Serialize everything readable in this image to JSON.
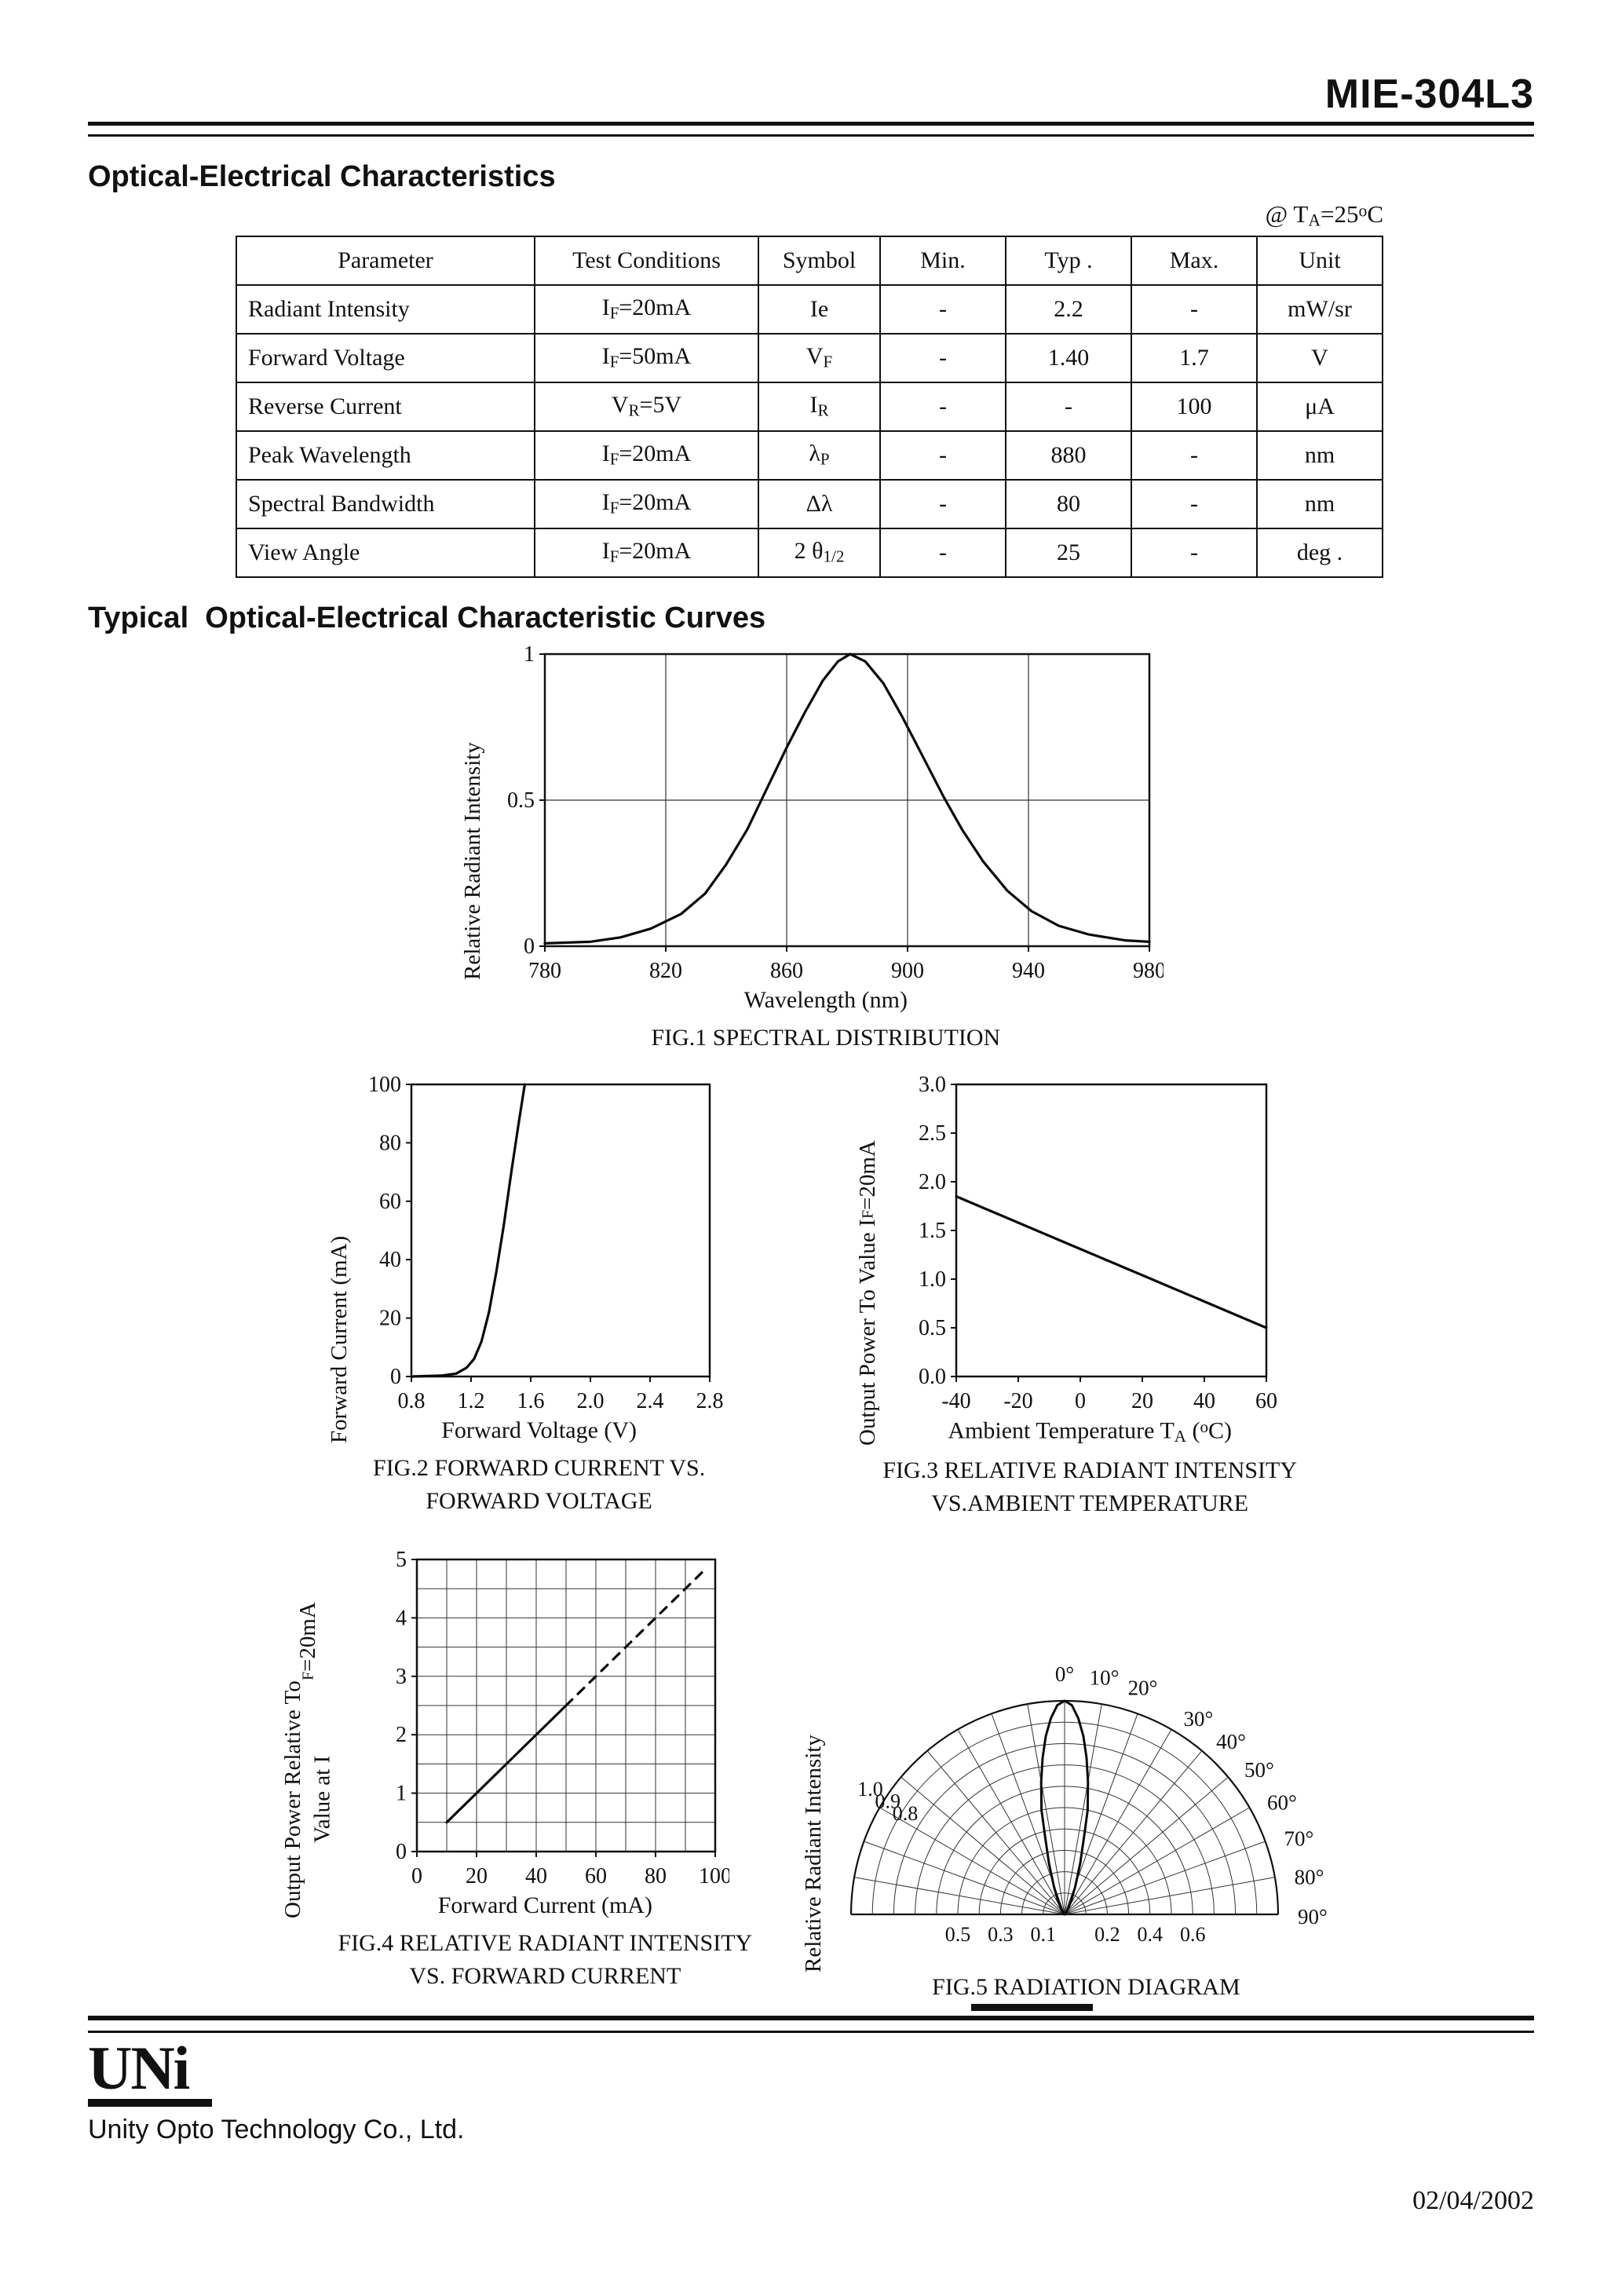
{
  "colors": {
    "ink": "#111111",
    "paper": "#ffffff"
  },
  "page": {
    "title": "MIE-304L3",
    "section1_heading": "Optical-Electrical Characteristics",
    "condition_note": "@ T~A~=25^o^C",
    "section2_heading": "Typical  Optical-Electrical Characteristic Curves"
  },
  "table": {
    "headers": [
      "Parameter",
      "Test Conditions",
      "Symbol",
      "Min.",
      "Typ .",
      "Max.",
      "Unit"
    ],
    "rows": [
      {
        "cells": [
          "Radiant Intensity",
          "I~F~=20mA",
          "Ie",
          "-",
          "2.2",
          "-",
          "mW/sr"
        ]
      },
      {
        "cells": [
          "Forward Voltage",
          "I~F~=50mA",
          "V~F~",
          "-",
          "1.40",
          "1.7",
          "V"
        ]
      },
      {
        "cells": [
          "Reverse Current",
          "V~R~=5V",
          "I~R~",
          "-",
          "-",
          "100",
          "μA"
        ]
      },
      {
        "cells": [
          "Peak Wavelength",
          "I~F~=20mA",
          "λ~P~",
          "-",
          "880",
          "-",
          "nm"
        ]
      },
      {
        "cells": [
          "Spectral Bandwidth",
          "I~F~=20mA",
          "Δλ",
          "-",
          "80",
          "-",
          "nm"
        ]
      },
      {
        "cells": [
          "View Angle",
          "I~F~=20mA",
          "2 θ~1/2~",
          "-",
          "25",
          "-",
          "deg ."
        ]
      }
    ]
  },
  "chart_data": [
    {
      "id": "fig1",
      "type": "line",
      "title": "FIG.1 SPECTRAL DISTRIBUTION",
      "xlabel": "Wavelength (nm)",
      "ylabel": "Relative Radiant Intensity",
      "xlim": [
        780,
        980
      ],
      "ylim": [
        0,
        1
      ],
      "xticks": [
        780,
        820,
        860,
        900,
        940,
        980
      ],
      "yticks": [
        0,
        0.5,
        1
      ],
      "ytick_labels": [
        "0",
        "0.5",
        "1"
      ],
      "grid": "ticks",
      "series": [
        {
          "name": "spectral distribution",
          "dash": false,
          "points": [
            [
              780,
              0.01
            ],
            [
              795,
              0.015
            ],
            [
              805,
              0.03
            ],
            [
              815,
              0.06
            ],
            [
              825,
              0.11
            ],
            [
              833,
              0.18
            ],
            [
              840,
              0.28
            ],
            [
              847,
              0.4
            ],
            [
              853,
              0.53
            ],
            [
              860,
              0.68
            ],
            [
              866,
              0.8
            ],
            [
              872,
              0.91
            ],
            [
              877,
              0.975
            ],
            [
              881,
              1.0
            ],
            [
              886,
              0.975
            ],
            [
              892,
              0.9
            ],
            [
              898,
              0.79
            ],
            [
              905,
              0.65
            ],
            [
              912,
              0.51
            ],
            [
              918,
              0.4
            ],
            [
              925,
              0.29
            ],
            [
              933,
              0.19
            ],
            [
              941,
              0.12
            ],
            [
              950,
              0.07
            ],
            [
              960,
              0.04
            ],
            [
              972,
              0.02
            ],
            [
              980,
              0.015
            ]
          ]
        }
      ]
    },
    {
      "id": "fig2",
      "type": "line",
      "title": "FIG.2 FORWARD CURRENT VS.",
      "title2": "FORWARD VOLTAGE",
      "xlabel": "Forward Voltage (V)",
      "ylabel": "Forward Current (mA)",
      "xlim": [
        0.8,
        2.8
      ],
      "ylim": [
        0,
        100
      ],
      "xticks": [
        0.8,
        1.2,
        1.6,
        2.0,
        2.4,
        2.8
      ],
      "xtick_labels": [
        "0.8",
        "1.2",
        "1.6",
        "2.0",
        "2.4",
        "2.8"
      ],
      "yticks": [
        0,
        20,
        40,
        60,
        80,
        100
      ],
      "grid": "none",
      "series": [
        {
          "name": "forward current vs forward voltage",
          "dash": false,
          "points": [
            [
              0.8,
              0
            ],
            [
              1.0,
              0.3
            ],
            [
              1.1,
              1
            ],
            [
              1.17,
              3
            ],
            [
              1.22,
              6
            ],
            [
              1.27,
              12
            ],
            [
              1.32,
              22
            ],
            [
              1.37,
              36
            ],
            [
              1.42,
              52
            ],
            [
              1.47,
              70
            ],
            [
              1.52,
              87
            ],
            [
              1.56,
              100
            ]
          ]
        }
      ]
    },
    {
      "id": "fig3",
      "type": "line",
      "title": "FIG.3 RELATIVE RADIANT INTENSITY",
      "title2": "VS.AMBIENT TEMPERATURE",
      "xlabel": "Ambient Temperature T~A~ (^o^C)",
      "ylabel": "Output Power To Value I~F~=20mA",
      "xlim": [
        -40,
        60
      ],
      "ylim": [
        0,
        3
      ],
      "xticks": [
        -40,
        -20,
        0,
        20,
        40,
        60
      ],
      "yticks": [
        0,
        0.5,
        1,
        1.5,
        2,
        2.5,
        3
      ],
      "ytick_labels": [
        "0.0",
        "0.5",
        "1.0",
        "1.5",
        "2.0",
        "2.5",
        "3.0"
      ],
      "grid": "none",
      "series": [
        {
          "name": "output power vs ambient temperature",
          "dash": false,
          "points": [
            [
              -40,
              1.85
            ],
            [
              -20,
              1.58
            ],
            [
              0,
              1.31
            ],
            [
              20,
              1.04
            ],
            [
              40,
              0.77
            ],
            [
              60,
              0.5
            ]
          ]
        }
      ]
    },
    {
      "id": "fig4",
      "type": "line",
      "title": "FIG.4 RELATIVE RADIANT INTENSITY",
      "title2": "VS. FORWARD CURRENT",
      "xlabel": "Forward Current (mA)",
      "ylabel": "Output Power Relative To\nValue at I~F~ =20mA",
      "xlim": [
        0,
        100
      ],
      "ylim": [
        0,
        5
      ],
      "xticks": [
        0,
        20,
        40,
        60,
        80,
        100
      ],
      "yticks": [
        0,
        1,
        2,
        3,
        4,
        5
      ],
      "grid": "fine",
      "grid_dx": 10,
      "grid_dy": 0.5,
      "series": [
        {
          "name": "output power vs forward current (solid)",
          "dash": false,
          "points": [
            [
              10,
              0.5
            ],
            [
              50,
              2.5
            ]
          ]
        },
        {
          "name": "output power vs forward current (dashed)",
          "dash": true,
          "points": [
            [
              50,
              2.5
            ],
            [
              97,
              4.85
            ]
          ]
        }
      ]
    },
    {
      "id": "fig5",
      "type": "polar",
      "title": "FIG.5 RADIATION DIAGRAM",
      "ylabel": "Relative Radiant Intensity",
      "rings": [
        0.1,
        0.2,
        0.3,
        0.4,
        0.5,
        0.6,
        0.7,
        0.8,
        0.9,
        1.0
      ],
      "radial_step_deg": 10,
      "angle_labels": [
        {
          "angle": 0,
          "label": "0°"
        },
        {
          "angle": 10,
          "label": "10°"
        },
        {
          "angle": 20,
          "label": "20°"
        },
        {
          "angle": 30,
          "label": "30°"
        },
        {
          "angle": 40,
          "label": "40°"
        },
        {
          "angle": 50,
          "label": "50°"
        },
        {
          "angle": 60,
          "label": "60°"
        },
        {
          "angle": 70,
          "label": "70°"
        },
        {
          "angle": 80,
          "label": "80°"
        },
        {
          "angle": 90,
          "label": "90°"
        }
      ],
      "ring_labels_left": [
        {
          "r": 1.0,
          "label": "1.0"
        },
        {
          "r": 0.9,
          "label": "0.9"
        },
        {
          "r": 0.8,
          "label": "0.8"
        }
      ],
      "ring_labels_bottom": [
        {
          "r": 0.5,
          "side": -1,
          "label": "0.5"
        },
        {
          "r": 0.3,
          "side": -1,
          "label": "0.3"
        },
        {
          "r": 0.1,
          "side": -1,
          "label": "0.1"
        },
        {
          "r": 0.2,
          "side": 1,
          "label": "0.2"
        },
        {
          "r": 0.4,
          "side": 1,
          "label": "0.4"
        },
        {
          "r": 0.6,
          "side": 1,
          "label": "0.6"
        }
      ],
      "lobe": [
        [
          -40,
          0.01
        ],
        [
          -32,
          0.03
        ],
        [
          -26,
          0.07
        ],
        [
          -21,
          0.14
        ],
        [
          -17,
          0.25
        ],
        [
          -14,
          0.38
        ],
        [
          -12.5,
          0.5
        ],
        [
          -10,
          0.63
        ],
        [
          -8,
          0.74
        ],
        [
          -6,
          0.84
        ],
        [
          -4,
          0.92
        ],
        [
          -2,
          0.98
        ],
        [
          0,
          1.0
        ],
        [
          2,
          0.98
        ],
        [
          4,
          0.92
        ],
        [
          6,
          0.84
        ],
        [
          8,
          0.74
        ],
        [
          10,
          0.63
        ],
        [
          12.5,
          0.5
        ],
        [
          14,
          0.38
        ],
        [
          17,
          0.25
        ],
        [
          21,
          0.14
        ],
        [
          26,
          0.07
        ],
        [
          32,
          0.03
        ],
        [
          40,
          0.01
        ]
      ]
    }
  ],
  "footer": {
    "logo_text": "UNi",
    "company": "Unity Opto Technology Co., Ltd.",
    "date": "02/04/2002"
  }
}
